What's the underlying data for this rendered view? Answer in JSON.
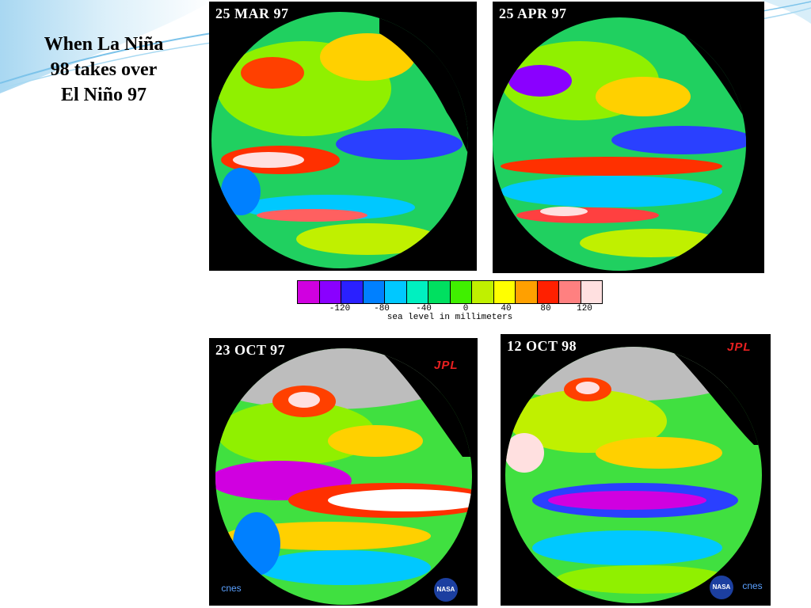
{
  "slide": {
    "title_lines": [
      "When La Niña",
      "98 takes over",
      "El Niño 97"
    ]
  },
  "panels": [
    {
      "date": "25 MAR 97"
    },
    {
      "date": "25 APR 97"
    },
    {
      "date": "23 OCT 97",
      "logo": "JPL",
      "agency_a": "cnes",
      "agency_b": "NASA"
    },
    {
      "date": "12 OCT 98",
      "logo": "JPL",
      "agency_a": "NASA",
      "agency_b": "cnes"
    }
  ],
  "colorbar": {
    "ticks": [
      "-120",
      "-80",
      "-40",
      "0",
      "40",
      "80",
      "120"
    ],
    "caption": "sea level in millimeters",
    "colors": [
      "#d000e0",
      "#8a00ff",
      "#2a20ff",
      "#0080ff",
      "#00c8ff",
      "#00f0c0",
      "#00e060",
      "#40f000",
      "#c0f000",
      "#ffff00",
      "#ffa000",
      "#ff2000",
      "#ff8080",
      "#ffe0e0"
    ]
  },
  "colors": {
    "swoosh": "#bfe3f5",
    "land": "#000000",
    "ice": "#bdbdbd",
    "jpl": "#e82020"
  }
}
